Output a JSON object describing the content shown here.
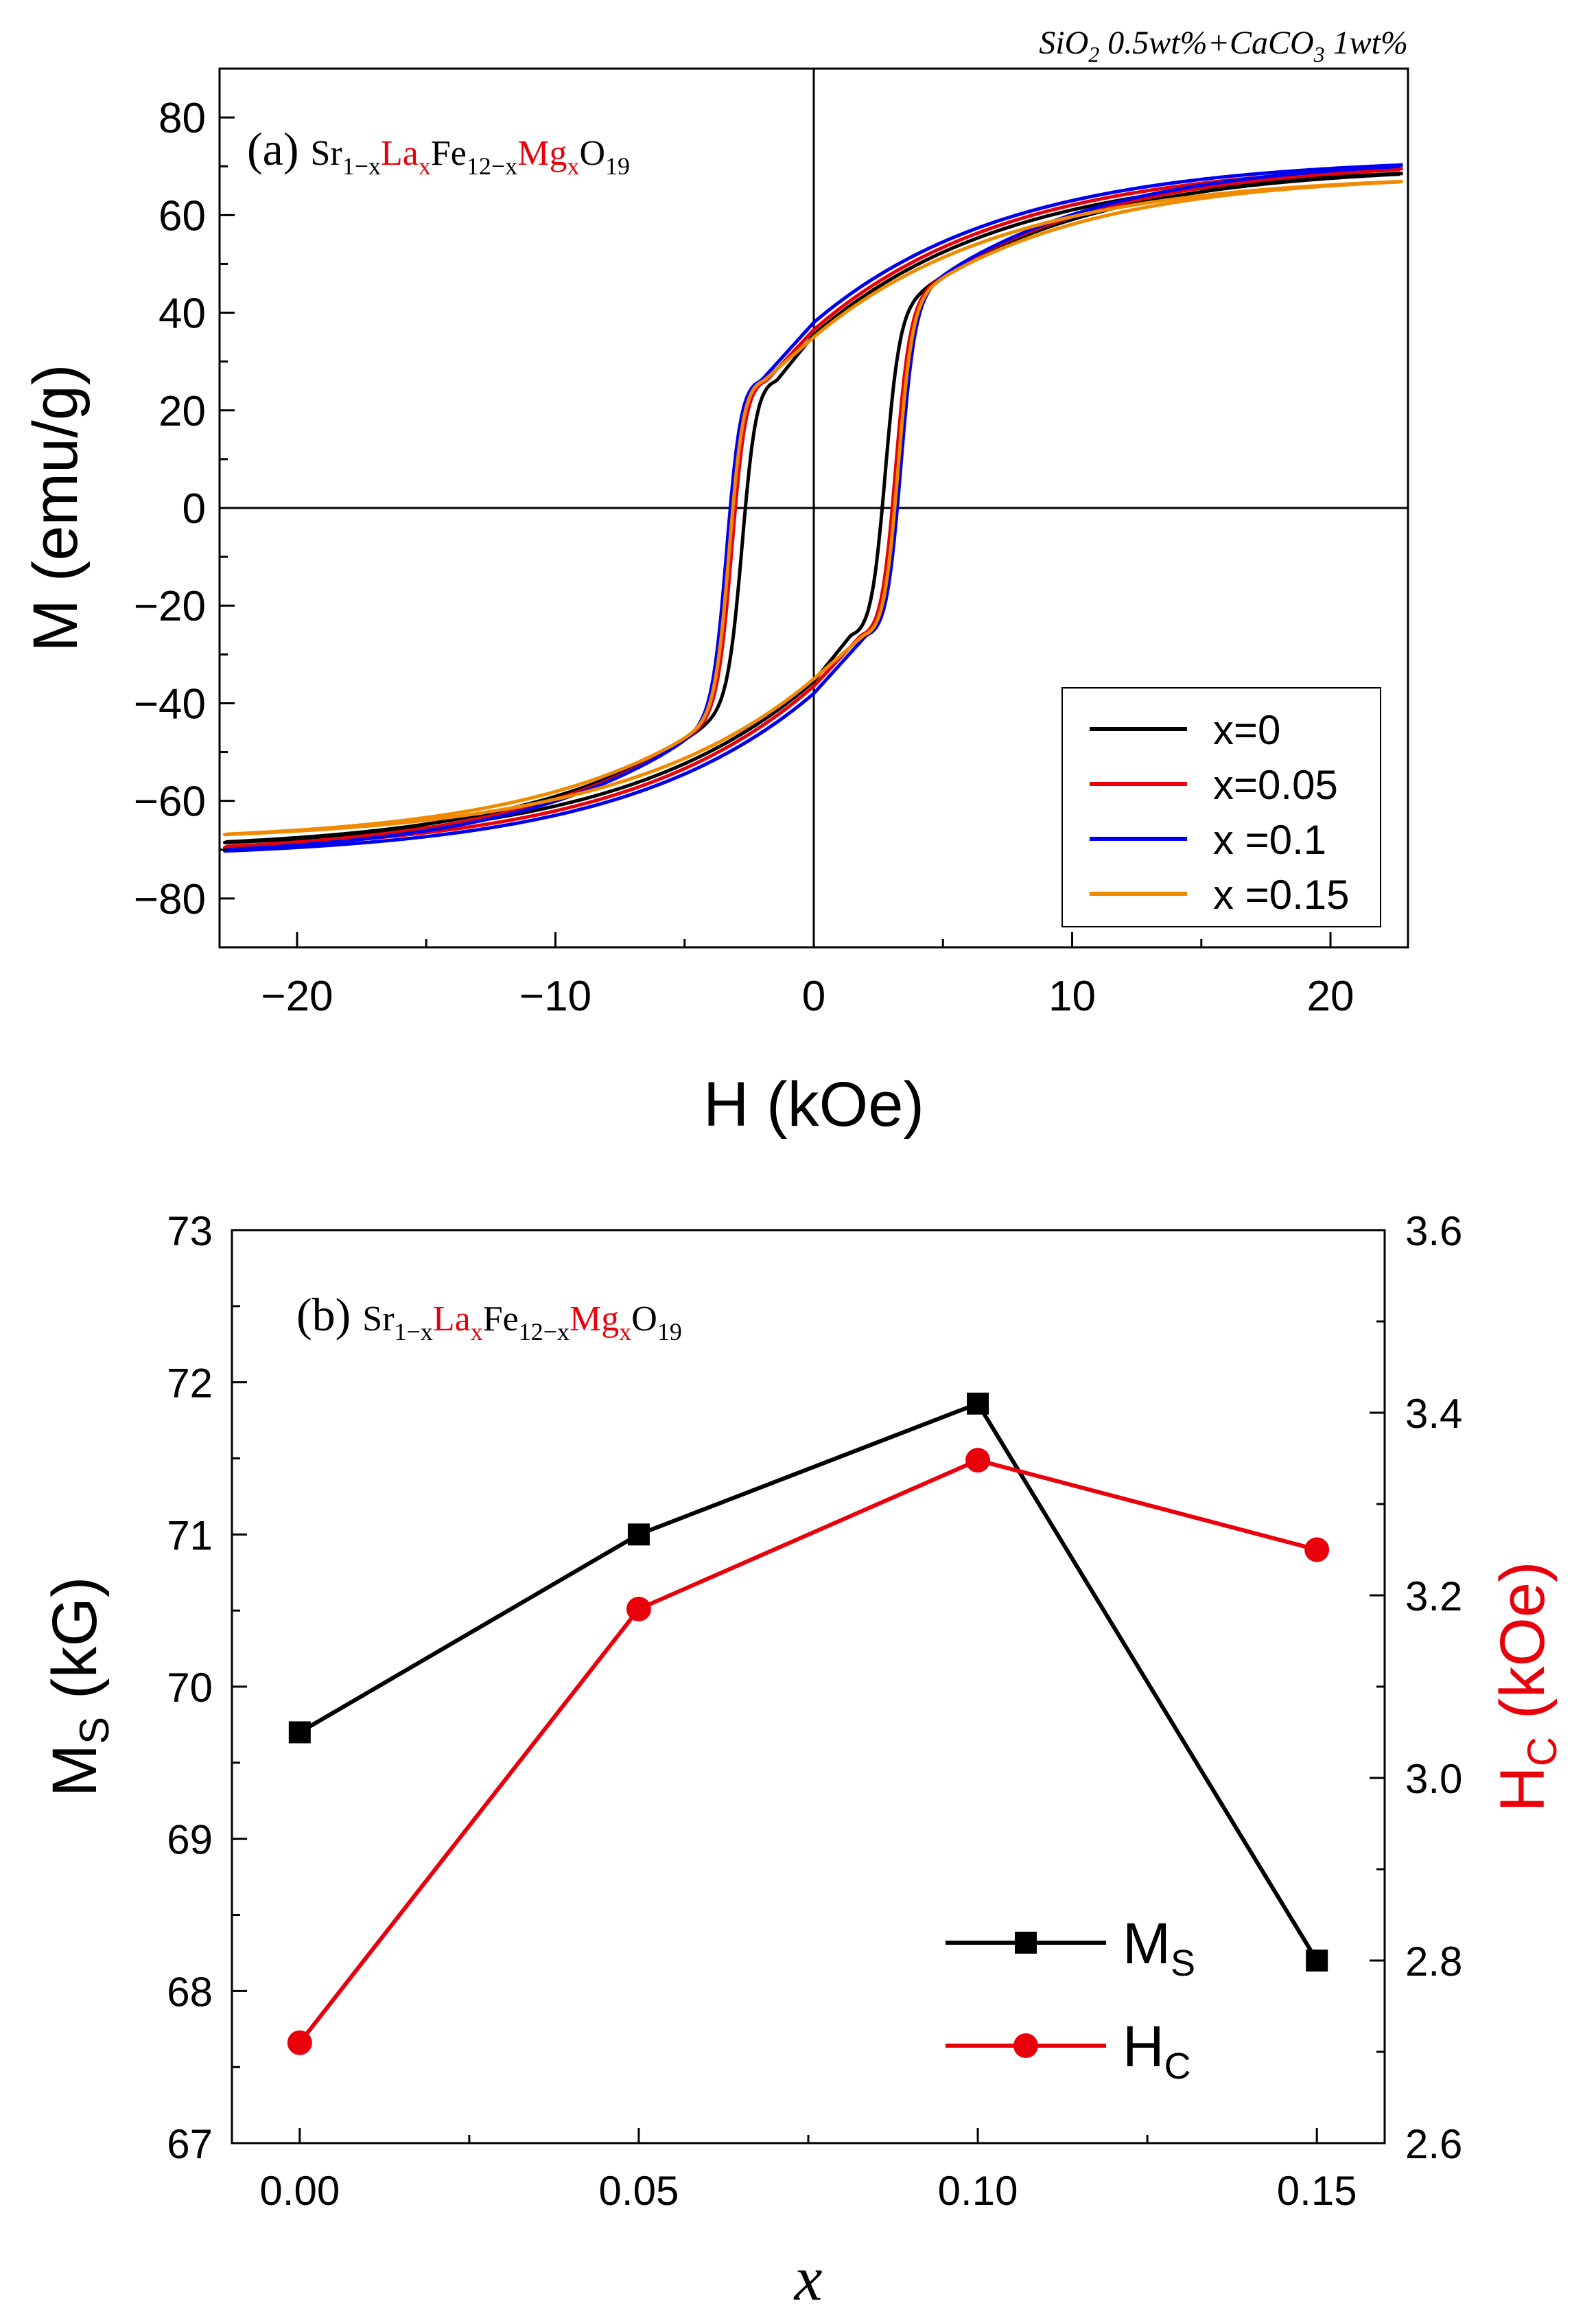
{
  "chart_data": [
    {
      "panel": "(a)",
      "type": "line",
      "annotation_top_right": "SiO2 0.5wt%+CaCO3 1wt%",
      "composition_label": "Sr1−xLaxFe12−xMgxO19",
      "xlabel": "H (kOe)",
      "ylabel": "M (emu/g)",
      "xlim": [
        -23,
        23
      ],
      "ylim": [
        -90,
        90
      ],
      "xticks": [
        -20,
        -10,
        0,
        10,
        20
      ],
      "yticks": [
        -80,
        -60,
        -40,
        -20,
        0,
        20,
        40,
        60,
        80
      ],
      "xtick_labels": [
        "−20",
        "−10",
        "0",
        "10",
        "20"
      ],
      "ytick_labels": [
        "−80",
        "−60",
        "−40",
        "−20",
        "0",
        "20",
        "40",
        "60",
        "80"
      ],
      "grid": false,
      "zero_lines": true,
      "legend_position": "bottom-right",
      "series": [
        {
          "name": "x=0",
          "color": "#000000",
          "Ms": 70.2,
          "Mr": 35.5,
          "Hc": 2.75
        },
        {
          "name": "x=0.05",
          "color": "#e8000b",
          "Ms": 71.2,
          "Mr": 36.5,
          "Hc": 3.15
        },
        {
          "name": "x =0.1",
          "color": "#0000ee",
          "Ms": 71.9,
          "Mr": 38.0,
          "Hc": 3.35
        },
        {
          "name": "x =0.15",
          "color": "#f08a00",
          "Ms": 68.5,
          "Mr": 35.0,
          "Hc": 3.25
        }
      ]
    },
    {
      "panel": "(b)",
      "type": "line",
      "composition_label": "Sr1−xLaxFe12−xMgxO19",
      "xlabel": "x",
      "ylabel_left": "MS (kG)",
      "ylabel_right": "HC (kOe)",
      "xlim": [
        -0.01,
        0.16
      ],
      "ylim_left": [
        67,
        73
      ],
      "ylim_right": [
        2.6,
        3.6
      ],
      "xticks": [
        0,
        0.05,
        0.1,
        0.15
      ],
      "xtick_labels": [
        "0.00",
        "0.05",
        "0.10",
        "0.15"
      ],
      "yticks_left": [
        67,
        68,
        69,
        70,
        71,
        72,
        73
      ],
      "ytick_labels_left": [
        "67",
        "68",
        "69",
        "70",
        "71",
        "72",
        "73"
      ],
      "yticks_right": [
        2.6,
        2.8,
        3.0,
        3.2,
        3.4,
        3.6
      ],
      "ytick_labels_right": [
        "2.6",
        "2.8",
        "3.0",
        "3.2",
        "3.4",
        "3.6"
      ],
      "grid": false,
      "legend_position": "bottom-right",
      "categories": [
        0,
        0.05,
        0.1,
        0.15
      ],
      "series": [
        {
          "name": "MS",
          "axis": "left",
          "marker": "square",
          "color": "#000000",
          "values": [
            69.7,
            71.0,
            71.86,
            68.2
          ]
        },
        {
          "name": "HC",
          "axis": "right",
          "marker": "circle",
          "color": "#e8000b",
          "values": [
            2.71,
            3.185,
            3.348,
            3.25
          ]
        }
      ]
    }
  ]
}
